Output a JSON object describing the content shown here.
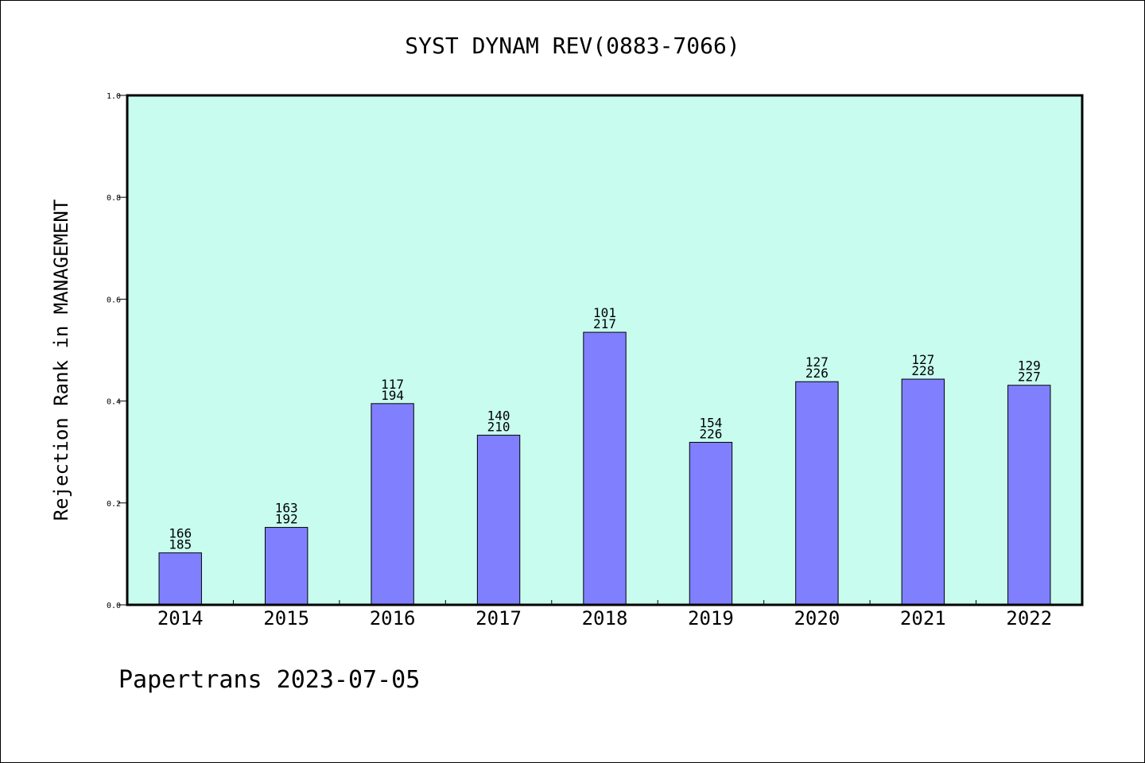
{
  "chart_data": {
    "type": "bar",
    "title": "SYST DYNAM REV(0883-7066)",
    "xlabel": "",
    "ylabel": "Rejection Rank in MANAGEMENT",
    "ylim": [
      0.0,
      1.0
    ],
    "yticks": [
      "0.0",
      "0.2",
      "0.4",
      "0.6",
      "0.8",
      "1.0"
    ],
    "categories": [
      "2014",
      "2015",
      "2016",
      "2017",
      "2018",
      "2019",
      "2020",
      "2021",
      "2022"
    ],
    "values": [
      0.102,
      0.152,
      0.395,
      0.333,
      0.535,
      0.319,
      0.438,
      0.443,
      0.431
    ],
    "labels_top": [
      "166",
      "163",
      "117",
      "140",
      "101",
      "154",
      "127",
      "127",
      "129"
    ],
    "labels_bottom": [
      "185",
      "192",
      "194",
      "210",
      "217",
      "226",
      "226",
      "228",
      "227"
    ],
    "grid": false,
    "colors": {
      "plot_background": "#c8fcee",
      "bar_fill": "#8080ff",
      "bar_stroke": "#000000"
    }
  },
  "footer": "Papertrans 2023-07-05"
}
